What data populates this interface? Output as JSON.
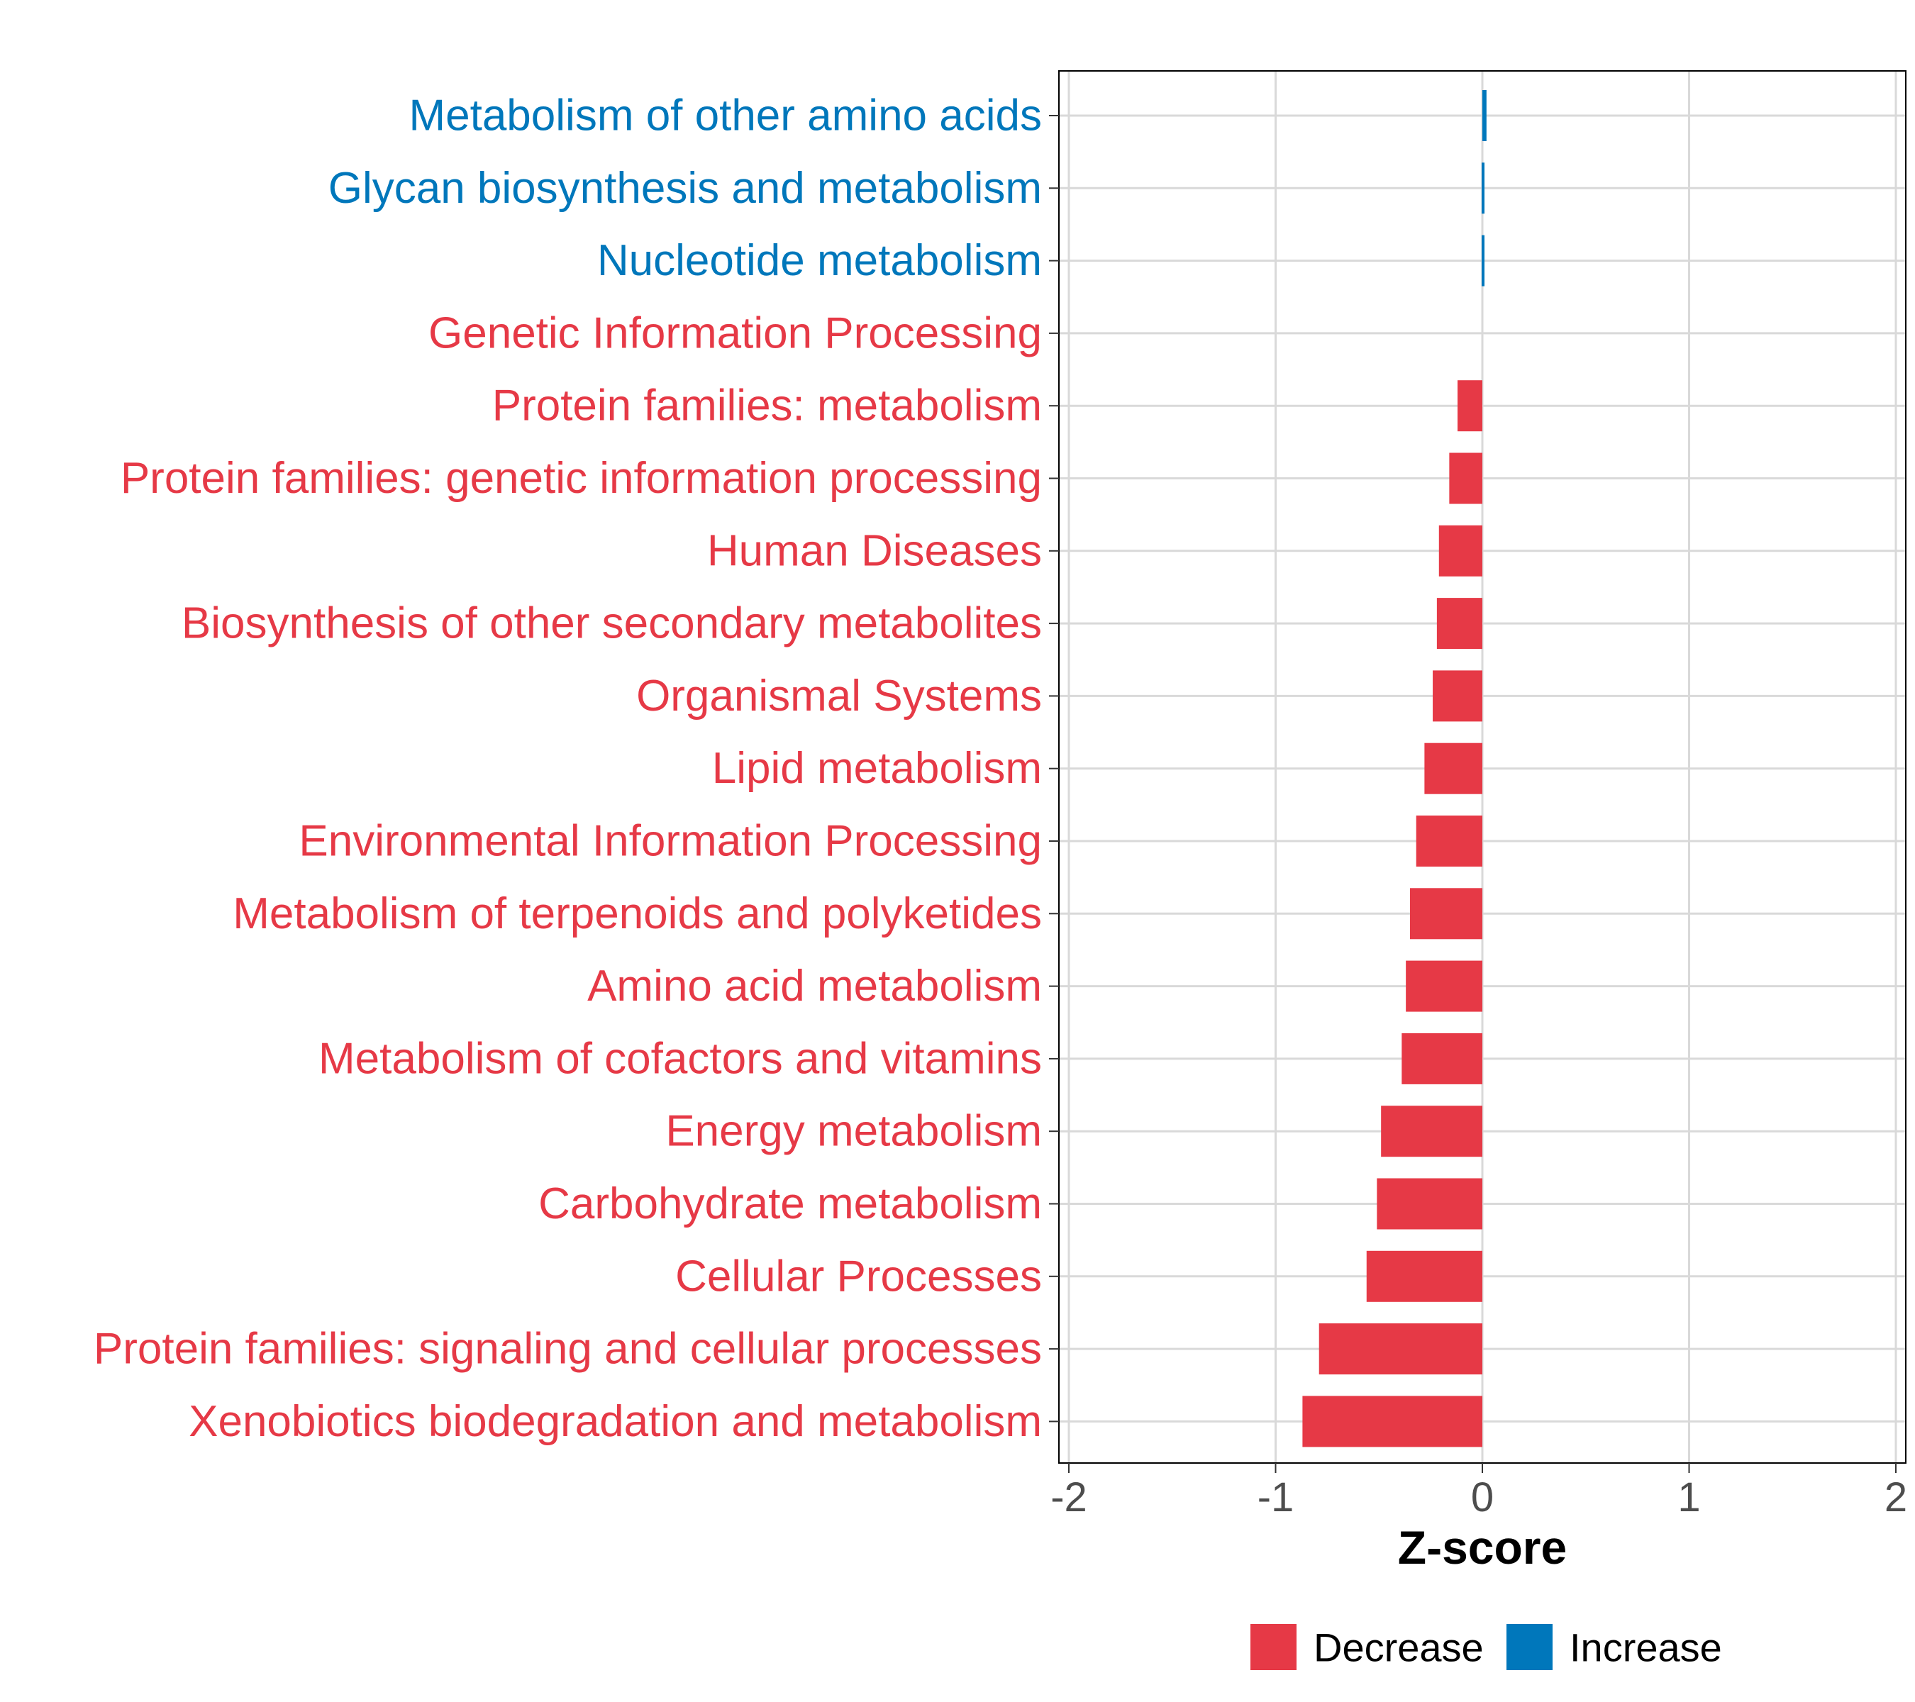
{
  "chart_data": {
    "type": "bar",
    "orientation": "horizontal",
    "xlabel": "Z-score",
    "xlim": [
      -2,
      2
    ],
    "xticks": [
      -2,
      -1,
      0,
      1,
      2
    ],
    "xtick_labels": [
      "-2",
      "-1",
      "0",
      "1",
      "2"
    ],
    "grid": true,
    "colors": {
      "Decrease": "#E63946",
      "Increase": "#0077BB"
    },
    "categories": [
      "Metabolism of other amino acids",
      "Glycan biosynthesis and metabolism",
      "Nucleotide metabolism",
      "Genetic Information Processing",
      "Protein families: metabolism",
      "Protein families: genetic information processing",
      "Human Diseases",
      "Biosynthesis of other secondary metabolites",
      "Organismal Systems",
      "Lipid metabolism",
      "Environmental Information Processing",
      "Metabolism of terpenoids and polyketides",
      "Amino acid metabolism",
      "Metabolism of cofactors and vitamins",
      "Energy metabolism",
      "Carbohydrate metabolism",
      "Cellular Processes",
      "Protein families: signaling and cellular processes",
      "Xenobiotics biodegradation and metabolism"
    ],
    "values": [
      0.02,
      0.01,
      0.01,
      0.0,
      -0.12,
      -0.16,
      -0.21,
      -0.22,
      -0.24,
      -0.28,
      -0.32,
      -0.35,
      -0.37,
      -0.39,
      -0.49,
      -0.51,
      -0.56,
      -0.79,
      -0.87
    ],
    "groups": [
      "Increase",
      "Increase",
      "Increase",
      "Decrease",
      "Decrease",
      "Decrease",
      "Decrease",
      "Decrease",
      "Decrease",
      "Decrease",
      "Decrease",
      "Decrease",
      "Decrease",
      "Decrease",
      "Decrease",
      "Decrease",
      "Decrease",
      "Decrease",
      "Decrease"
    ],
    "legend": {
      "position": "bottom",
      "entries": [
        {
          "label": "Decrease",
          "color": "#E63946"
        },
        {
          "label": "Increase",
          "color": "#0077BB"
        }
      ]
    }
  }
}
